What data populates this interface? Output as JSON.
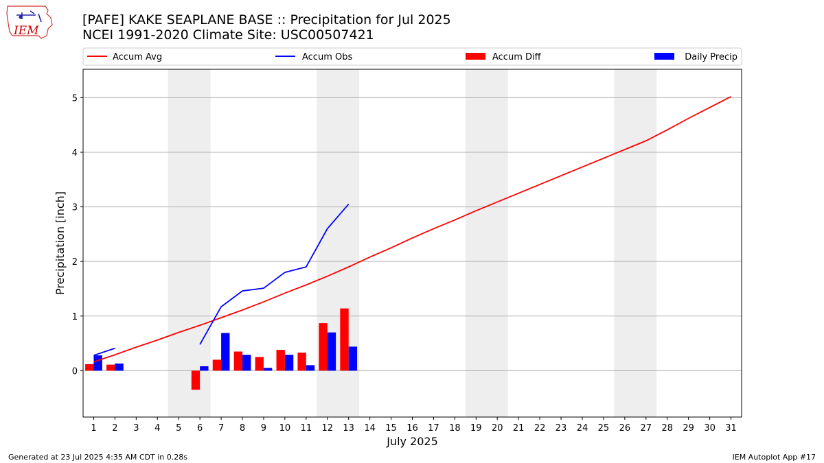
{
  "logo": {
    "text": "IEM",
    "brand_color": "#cc0000",
    "icon": "iowa-map-weather-icon"
  },
  "title": {
    "line1": "[PAFE] KAKE SEAPLANE BASE :: Precipitation for Jul 2025",
    "line2": "NCEI 1991-2020 Climate Site: USC00507421"
  },
  "footer": {
    "generated": "Generated at 23 Jul 2025 4:35 AM CDT in 0.28s",
    "app": "IEM Autoplot App #17"
  },
  "colors": {
    "avg": "#ff0000",
    "obs": "#0000ff",
    "diff": "#ff0000",
    "daily": "#0000ff",
    "weekend": "#eeeeee",
    "grid": "#b0b0b0"
  },
  "chart_data": {
    "type": "bar",
    "xlabel": "July 2025",
    "ylabel": "Precipitation [inch]",
    "xlim": [
      0.5,
      31.5
    ],
    "ylim": [
      -0.85,
      5.52
    ],
    "yticks": [
      0,
      1,
      2,
      3,
      4,
      5
    ],
    "categories": [
      "1",
      "2",
      "3",
      "4",
      "5",
      "6",
      "7",
      "8",
      "9",
      "10",
      "11",
      "12",
      "13",
      "14",
      "15",
      "16",
      "17",
      "18",
      "19",
      "20",
      "21",
      "22",
      "23",
      "24",
      "25",
      "26",
      "27",
      "28",
      "29",
      "30",
      "31"
    ],
    "weekend_days": [
      [
        5,
        6
      ],
      [
        12,
        13
      ],
      [
        19,
        20
      ],
      [
        26,
        27
      ]
    ],
    "legend": [
      "Accum Avg",
      "Accum Obs",
      "Accum Diff",
      "Daily Precip"
    ],
    "grid": "horizontal",
    "series": [
      {
        "name": "Accum Avg",
        "kind": "line",
        "color": "#ff0000",
        "x": [
          1,
          2,
          3,
          4,
          5,
          6,
          7,
          8,
          9,
          10,
          11,
          12,
          13,
          14,
          15,
          16,
          17,
          18,
          19,
          20,
          21,
          22,
          23,
          24,
          25,
          26,
          27,
          28,
          29,
          30,
          31
        ],
        "values": [
          0.16,
          0.29,
          0.43,
          0.56,
          0.7,
          0.83,
          0.97,
          1.11,
          1.26,
          1.42,
          1.57,
          1.73,
          1.9,
          2.08,
          2.25,
          2.43,
          2.6,
          2.76,
          2.93,
          3.09,
          3.25,
          3.41,
          3.57,
          3.73,
          3.89,
          4.05,
          4.21,
          4.41,
          4.62,
          4.82,
          5.02
        ]
      },
      {
        "name": "Accum Obs",
        "kind": "line",
        "color": "#0000ff",
        "segments": [
          {
            "x": [
              1,
              2
            ],
            "values": [
              0.28,
              0.41
            ]
          },
          {
            "x": [
              6,
              7,
              8,
              9,
              10,
              11,
              12,
              13
            ],
            "values": [
              0.48,
              1.17,
              1.46,
              1.51,
              1.8,
              1.9,
              2.6,
              3.05
            ]
          }
        ]
      },
      {
        "name": "Accum Diff",
        "kind": "bar",
        "color": "#ff0000",
        "x": [
          1,
          2,
          6,
          7,
          8,
          9,
          10,
          11,
          12,
          13
        ],
        "values": [
          0.12,
          0.11,
          -0.35,
          0.2,
          0.35,
          0.25,
          0.38,
          0.33,
          0.87,
          1.14
        ]
      },
      {
        "name": "Daily Precip",
        "kind": "bar",
        "color": "#0000ff",
        "x": [
          1,
          2,
          6,
          7,
          8,
          9,
          10,
          11,
          12,
          13
        ],
        "values": [
          0.28,
          0.13,
          0.08,
          0.69,
          0.29,
          0.05,
          0.29,
          0.1,
          0.7,
          0.44
        ]
      }
    ]
  }
}
